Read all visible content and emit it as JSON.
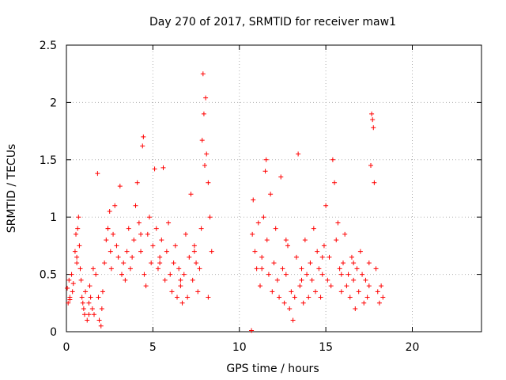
{
  "chart_data": {
    "type": "scatter",
    "title": "Day 270 of 2017, SRMTID for receiver maw1",
    "xlabel": "GPS time / hours",
    "ylabel": "SRMTID / TECUs",
    "xlim": [
      0,
      24
    ],
    "ylim": [
      0,
      2.5
    ],
    "x_ticks": [
      0,
      5,
      10,
      15,
      20
    ],
    "x_tick_labels": [
      "0",
      "5",
      "10",
      "15",
      "20"
    ],
    "y_ticks": [
      0,
      0.5,
      1,
      1.5,
      2,
      2.5
    ],
    "y_tick_labels": [
      "0",
      "0.5",
      "1",
      "1.5",
      "2",
      "2.5"
    ],
    "grid": true,
    "marker": "+",
    "series": [
      {
        "name": "SRMTID",
        "color": "#ff0000",
        "x": [
          0.05,
          0.1,
          0.15,
          0.2,
          0.3,
          0.35,
          0.4,
          0.5,
          0.55,
          0.6,
          0.65,
          0.7,
          0.75,
          0.8,
          0.85,
          0.9,
          0.95,
          1.0,
          1.05,
          1.1,
          1.2,
          1.3,
          1.35,
          1.4,
          1.5,
          1.55,
          1.6,
          1.7,
          1.8,
          1.85,
          1.9,
          2.0,
          2.05,
          2.1,
          2.2,
          2.3,
          2.4,
          2.5,
          2.55,
          2.6,
          2.7,
          2.8,
          2.9,
          3.0,
          3.1,
          3.2,
          3.3,
          3.4,
          3.5,
          3.6,
          3.7,
          3.8,
          3.9,
          4.0,
          4.1,
          4.2,
          4.3,
          4.4,
          4.45,
          4.5,
          4.6,
          4.7,
          4.8,
          4.9,
          5.0,
          5.1,
          5.2,
          5.3,
          5.4,
          5.5,
          5.6,
          5.7,
          5.8,
          5.9,
          6.0,
          6.1,
          6.2,
          6.3,
          6.4,
          6.5,
          6.6,
          6.7,
          6.8,
          6.9,
          7.0,
          7.1,
          7.2,
          7.3,
          7.4,
          7.5,
          7.6,
          7.7,
          7.8,
          7.85,
          7.9,
          7.95,
          8.0,
          8.05,
          8.1,
          8.2,
          8.3,
          8.4,
          10.7,
          10.75,
          10.8,
          10.9,
          11.0,
          11.1,
          11.2,
          11.3,
          11.4,
          11.5,
          11.55,
          11.6,
          11.7,
          11.8,
          11.9,
          12.0,
          12.1,
          12.2,
          12.3,
          12.4,
          12.5,
          12.6,
          12.7,
          12.8,
          12.9,
          13.0,
          13.1,
          13.2,
          13.3,
          13.4,
          13.5,
          13.6,
          13.7,
          13.8,
          13.9,
          14.0,
          14.1,
          14.2,
          14.3,
          14.4,
          14.5,
          14.6,
          14.7,
          14.8,
          14.9,
          15.0,
          15.1,
          15.2,
          15.3,
          15.4,
          15.5,
          15.6,
          15.7,
          15.8,
          15.9,
          16.0,
          16.1,
          16.2,
          16.3,
          16.4,
          16.5,
          16.6,
          16.7,
          16.8,
          16.9,
          17.0,
          17.1,
          17.2,
          17.3,
          17.4,
          17.5,
          17.6,
          17.65,
          17.7,
          17.75,
          17.8,
          17.9,
          18.0,
          18.1,
          18.2,
          18.3,
          0.2,
          0.6,
          1.3,
          2.4,
          3.2,
          4.3,
          5.4,
          6.6,
          7.4,
          8.2,
          11.3,
          12.7,
          13.6,
          14.8,
          15.9,
          16.6,
          17.5
        ],
        "y": [
          0.38,
          0.25,
          0.45,
          0.3,
          0.5,
          0.35,
          0.42,
          0.7,
          0.85,
          0.6,
          0.9,
          1.0,
          0.75,
          0.55,
          0.45,
          0.3,
          0.25,
          0.2,
          0.15,
          0.35,
          0.1,
          0.25,
          0.4,
          0.3,
          0.2,
          0.55,
          0.15,
          0.5,
          1.38,
          0.3,
          0.1,
          0.05,
          0.2,
          0.35,
          0.6,
          0.8,
          0.9,
          1.05,
          0.7,
          0.55,
          0.85,
          1.1,
          0.75,
          0.65,
          1.27,
          0.5,
          0.6,
          0.45,
          0.7,
          0.9,
          0.55,
          0.65,
          0.8,
          1.1,
          1.3,
          0.95,
          0.7,
          1.62,
          1.7,
          0.5,
          0.4,
          0.85,
          1.0,
          0.6,
          0.75,
          1.42,
          0.9,
          0.55,
          0.65,
          0.8,
          1.43,
          0.45,
          0.7,
          0.95,
          0.5,
          0.35,
          0.6,
          0.75,
          0.3,
          0.55,
          0.4,
          0.25,
          0.5,
          0.85,
          0.3,
          0.65,
          1.2,
          0.45,
          0.7,
          0.6,
          0.35,
          0.55,
          0.9,
          1.67,
          2.25,
          1.9,
          1.45,
          2.04,
          1.55,
          1.3,
          1.0,
          0.7,
          0.01,
          0.85,
          1.15,
          0.7,
          0.55,
          0.95,
          0.4,
          0.65,
          1.0,
          1.4,
          1.5,
          0.8,
          0.5,
          1.2,
          0.35,
          0.6,
          0.9,
          0.45,
          0.3,
          1.35,
          0.55,
          0.25,
          0.5,
          0.75,
          0.2,
          0.35,
          0.1,
          0.3,
          0.65,
          1.55,
          0.4,
          0.55,
          0.25,
          0.8,
          0.5,
          0.3,
          0.6,
          0.45,
          0.9,
          0.35,
          0.7,
          0.55,
          0.3,
          0.5,
          0.75,
          1.1,
          0.45,
          0.65,
          0.4,
          1.5,
          1.3,
          0.8,
          0.95,
          0.55,
          0.35,
          0.6,
          0.85,
          0.4,
          0.5,
          0.3,
          0.65,
          0.45,
          0.2,
          0.55,
          0.35,
          0.7,
          0.5,
          0.25,
          0.45,
          0.3,
          0.6,
          1.45,
          1.9,
          1.85,
          1.78,
          1.3,
          0.55,
          0.35,
          0.25,
          0.4,
          0.3,
          0.28,
          0.65,
          0.15,
          0.9,
          0.5,
          0.85,
          0.6,
          0.45,
          0.75,
          0.3,
          0.55,
          0.8,
          0.45,
          0.65,
          0.5,
          0.6,
          0.4
        ]
      }
    ]
  }
}
